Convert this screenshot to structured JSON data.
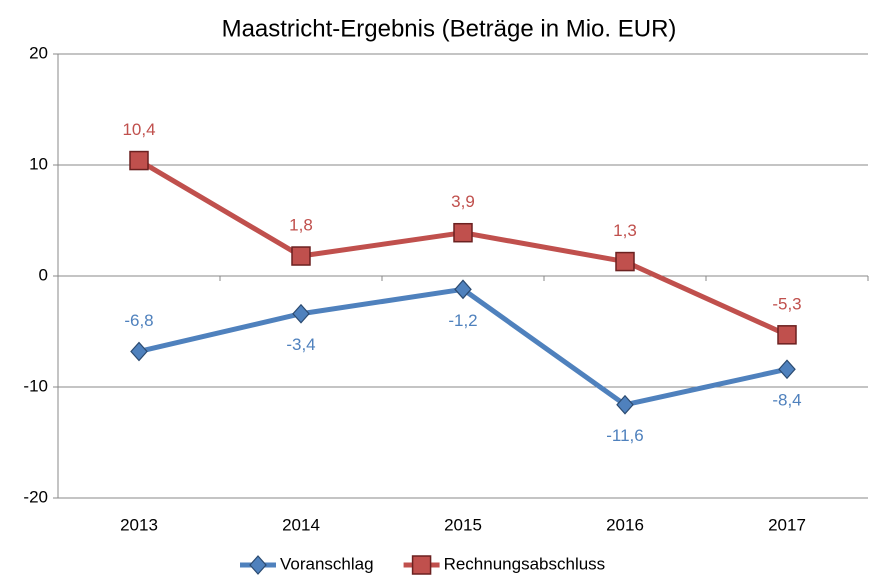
{
  "chart_data": {
    "type": "line",
    "title": "Maastricht-Ergebnis (Beträge in Mio. EUR)",
    "categories": [
      "2013",
      "2014",
      "2015",
      "2016",
      "2017"
    ],
    "series": [
      {
        "name": "Voranschlag",
        "color": "#4f81bd",
        "marker": "diamond",
        "values": [
          -6.8,
          -3.4,
          -1.2,
          -11.6,
          -8.4
        ],
        "value_labels": [
          "-6,8",
          "-3,4",
          "-1,2",
          "-11,6",
          "-8,4"
        ]
      },
      {
        "name": "Rechnungsabschluss",
        "color": "#c0504d",
        "marker": "square",
        "values": [
          10.4,
          1.8,
          3.9,
          1.3,
          -5.3
        ],
        "value_labels": [
          "10,4",
          "1,8",
          "3,9",
          "1,3",
          "-5,3"
        ]
      }
    ],
    "ylim": [
      -20,
      20
    ],
    "yticks": [
      -20,
      -10,
      0,
      10,
      20
    ],
    "grid": true,
    "legend": "bottom"
  }
}
